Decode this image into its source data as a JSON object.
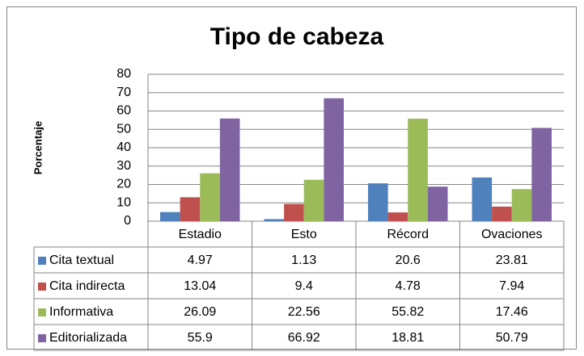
{
  "chart_data": {
    "type": "bar",
    "title": "Tipo de cabeza",
    "y_label": "Porcentaje",
    "categories": [
      "Estadio",
      "Esto",
      "Récord",
      "Ovaciones"
    ],
    "series": [
      {
        "name": "Cita textual",
        "color": "#4f81bd",
        "values": [
          4.97,
          1.13,
          20.6,
          23.81
        ]
      },
      {
        "name": "Cita indirecta",
        "color": "#c0504d",
        "values": [
          13.04,
          9.4,
          4.78,
          7.94
        ]
      },
      {
        "name": "Informativa",
        "color": "#9bbb59",
        "values": [
          26.09,
          22.56,
          55.82,
          17.46
        ]
      },
      {
        "name": "Editorializada",
        "color": "#8064a2",
        "values": [
          55.9,
          66.92,
          18.81,
          50.79
        ]
      }
    ],
    "ylim": [
      0,
      80
    ],
    "yticks": [
      0,
      10,
      20,
      30,
      40,
      50,
      60,
      70,
      80
    ],
    "grid": true,
    "data_table": true
  }
}
